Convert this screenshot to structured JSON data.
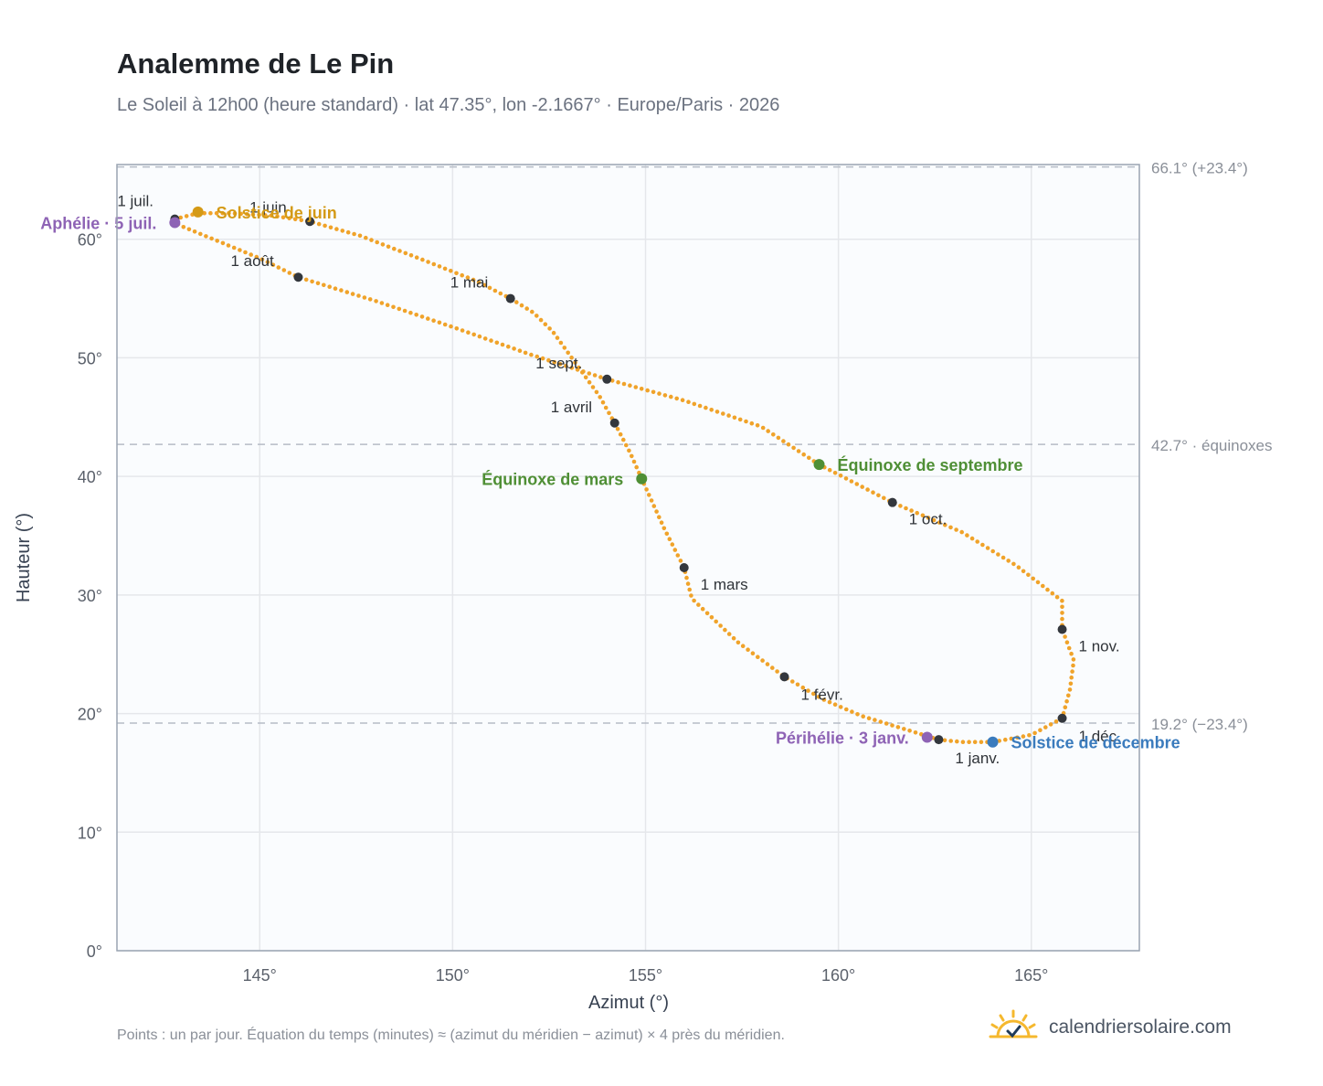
{
  "title": "Analemme de Le Pin",
  "subtitle": "Le Soleil à 12h00 (heure standard) · lat 47.35°, lon -2.1667° · Europe/Paris · 2026",
  "footnote": "Points : un par jour. Équation du temps (minutes) ≈ (azimut du méridien − azimut) × 4 près du méridien.",
  "brand": {
    "name": "calendriersolaire.com",
    "logo_icon": "sun-logo-icon",
    "logo_color": "#f5b82e"
  },
  "colors": {
    "curve": "#f0a32a",
    "month_marker": "#33373d",
    "aphelion": "#8e63b5",
    "solstice_june": "#d49a16",
    "equinox": "#4f8f35",
    "solstice_december": "#3a7bbd",
    "grid": "#e5e7eb",
    "plot_bg": "#fafcfe",
    "frame": "#9aa4b2"
  },
  "chart_data": {
    "type": "scatter",
    "title": "Analemme de Le Pin",
    "xlabel": "Azimut (°)",
    "ylabel": "Hauteur (°)",
    "xlim": [
      141.3,
      167.8
    ],
    "ylim": [
      0,
      66.3
    ],
    "xticks": [
      145,
      150,
      155,
      160,
      165
    ],
    "yticks": [
      0,
      10,
      20,
      30,
      40,
      50,
      60
    ],
    "grid": true,
    "reference_lines": [
      {
        "y": 66.1,
        "label": "66.1° (+23.4°)"
      },
      {
        "y": 42.7,
        "label": "42.7° · équinoxes"
      },
      {
        "y": 19.2,
        "label": "19.2° (−23.4°)"
      }
    ],
    "series": [
      {
        "points": [
          [
            162.6,
            17.8
          ],
          [
            161.8,
            18.6
          ],
          [
            160.6,
            19.8
          ],
          [
            159.6,
            21.2
          ],
          [
            158.6,
            23.1
          ],
          [
            157.4,
            26.0
          ],
          [
            156.2,
            29.7
          ],
          [
            156.0,
            32.3
          ],
          [
            155.5,
            35.5
          ],
          [
            154.9,
            39.8
          ],
          [
            154.6,
            42.0
          ],
          [
            154.2,
            44.5
          ],
          [
            153.8,
            46.8
          ],
          [
            153.2,
            49.5
          ],
          [
            152.6,
            52.2
          ],
          [
            152.1,
            53.8
          ],
          [
            151.5,
            55.0
          ],
          [
            150.6,
            56.5
          ],
          [
            149.2,
            58.3
          ],
          [
            147.6,
            60.3
          ],
          [
            146.3,
            61.5
          ],
          [
            145.3,
            62.0
          ],
          [
            144.2,
            62.2
          ],
          [
            143.4,
            62.2
          ],
          [
            142.8,
            61.7
          ],
          [
            142.9,
            61.2
          ],
          [
            143.8,
            60.0
          ],
          [
            145.0,
            58.4
          ],
          [
            146.0,
            56.8
          ],
          [
            148.0,
            54.8
          ],
          [
            150.0,
            52.6
          ],
          [
            152.0,
            50.3
          ],
          [
            154.0,
            48.2
          ],
          [
            156.0,
            46.4
          ],
          [
            158.0,
            44.2
          ],
          [
            159.5,
            41.0
          ],
          [
            161.4,
            37.8
          ],
          [
            163.2,
            35.3
          ],
          [
            164.6,
            32.5
          ],
          [
            165.8,
            29.5
          ],
          [
            165.8,
            27.1
          ],
          [
            166.1,
            24.5
          ],
          [
            166.0,
            22.0
          ],
          [
            165.8,
            19.6
          ],
          [
            165.0,
            18.2
          ],
          [
            164.0,
            17.6
          ],
          [
            163.2,
            17.6
          ],
          [
            162.6,
            17.8
          ]
        ]
      }
    ],
    "month_markers": [
      {
        "label": "1 janv.",
        "x": 162.6,
        "y": 17.8
      },
      {
        "label": "1 févr.",
        "x": 158.6,
        "y": 23.1
      },
      {
        "label": "1 mars",
        "x": 156.0,
        "y": 32.3
      },
      {
        "label": "1 avril",
        "x": 154.2,
        "y": 44.5
      },
      {
        "label": "1 mai",
        "x": 151.5,
        "y": 55.0
      },
      {
        "label": "1 juin",
        "x": 146.3,
        "y": 61.5
      },
      {
        "label": "1 juil.",
        "x": 142.8,
        "y": 61.7
      },
      {
        "label": "1 août",
        "x": 146.0,
        "y": 56.8
      },
      {
        "label": "1 sept.",
        "x": 154.0,
        "y": 48.2
      },
      {
        "label": "1 oct.",
        "x": 161.4,
        "y": 37.8
      },
      {
        "label": "1 nov.",
        "x": 165.8,
        "y": 27.1
      },
      {
        "label": "1 déc.",
        "x": 165.8,
        "y": 19.6
      }
    ],
    "events": [
      {
        "label": "Aphélie · 5 juil.",
        "x": 142.8,
        "y": 61.4,
        "color": "#8e63b5"
      },
      {
        "label": "Solstice de juin",
        "x": 143.4,
        "y": 62.3,
        "color": "#d49a16"
      },
      {
        "label": "Équinoxe de mars",
        "x": 154.9,
        "y": 39.8,
        "color": "#4f8f35"
      },
      {
        "label": "Équinoxe de septembre",
        "x": 159.5,
        "y": 41.0,
        "color": "#4f8f35"
      },
      {
        "label": "Périhélie · 3 janv.",
        "x": 162.3,
        "y": 18.0,
        "color": "#8e63b5"
      },
      {
        "label": "Solstice de décembre",
        "x": 164.0,
        "y": 17.6,
        "color": "#3a7bbd"
      }
    ]
  }
}
